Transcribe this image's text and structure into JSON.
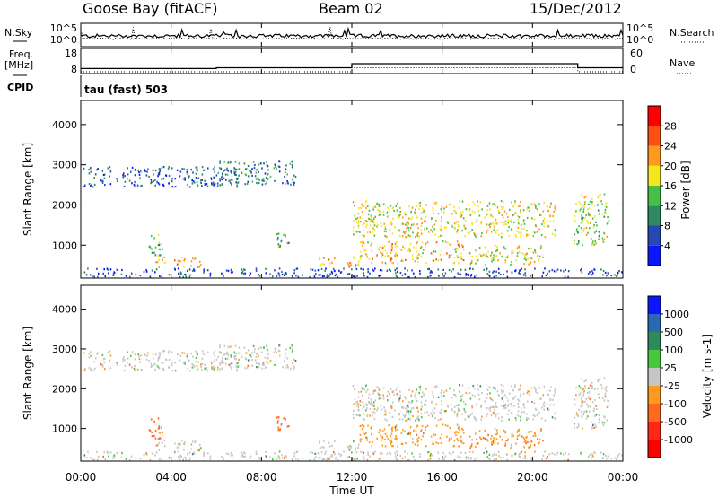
{
  "header": {
    "station": "Goose Bay (fitACF)",
    "beam": "Beam 02",
    "date": "15/Dec/2012"
  },
  "noise_panel": {
    "left_label": "N.Sky",
    "right_label": "N.Search",
    "left_ticks": [
      "10^5",
      "10^0"
    ],
    "right_ticks": [
      "10^5",
      "10^0"
    ]
  },
  "freq_panel": {
    "left_label_1": "Freq.",
    "left_label_2": "[MHz]",
    "left_ticks": [
      "18",
      "8"
    ],
    "right_label": "Nave",
    "right_ticks": [
      "60",
      "0"
    ],
    "cpid_label": "CPID",
    "cpid_value": "tau (fast) 503"
  },
  "time_axis": {
    "ticks": [
      "00:00",
      "04:00",
      "08:00",
      "12:00",
      "16:00",
      "20:00",
      "00:00"
    ],
    "tick_hours": [
      0,
      4,
      8,
      12,
      16,
      20,
      24
    ],
    "label": "Time UT"
  },
  "range_axis": {
    "label": "Slant Range [km]",
    "ticks": [
      "1000",
      "2000",
      "3000",
      "4000"
    ],
    "tick_values": [
      1000,
      2000,
      3000,
      4000
    ],
    "range": [
      180,
      4600
    ]
  },
  "power_bar": {
    "label": "Power [dB]",
    "ticks": [
      "4",
      "8",
      "12",
      "16",
      "20",
      "24",
      "28"
    ],
    "colors": [
      "#0a16ff",
      "#2448b4",
      "#2f8a64",
      "#46c046",
      "#f5e61e",
      "#ff9a1e",
      "#ff5014",
      "#ff0000"
    ]
  },
  "velocity_bar": {
    "label": "Velocity [m s-1]",
    "ticks": [
      "1000",
      "500",
      "100",
      "25",
      "-25",
      "-100",
      "-500",
      "-1000"
    ],
    "colors": [
      "#0a16ff",
      "#2a68b4",
      "#2f8a5a",
      "#46c83c",
      "#c6c6c6",
      "#ff9a1e",
      "#ff6a1e",
      "#ff2814",
      "#ff0000"
    ]
  },
  "chart_data": {
    "type": "heatmap",
    "x_unit": "hours UT",
    "y_unit": "km",
    "xlim": [
      0,
      24
    ],
    "ylim": [
      180,
      4600
    ],
    "frequency_steps_mhz": [
      [
        0,
        6,
        10
      ],
      [
        6,
        12,
        10.5
      ],
      [
        12,
        22,
        13
      ],
      [
        22,
        24,
        10.5
      ]
    ],
    "nave_steps": [
      [
        0,
        12,
        0
      ],
      [
        12,
        22,
        15
      ],
      [
        22,
        24,
        0
      ]
    ],
    "echo_regions": [
      {
        "t0": 0.1,
        "t1": 7.0,
        "r0": 2450,
        "r1": 2950,
        "power": 7,
        "velocity": 0
      },
      {
        "t0": 6.0,
        "t1": 9.5,
        "r0": 2500,
        "r1": 3100,
        "power": 8,
        "velocity": 0
      },
      {
        "t0": 3.3,
        "t1": 5.3,
        "r0": 450,
        "r1": 700,
        "power": 22,
        "velocity": 0
      },
      {
        "t0": 3.0,
        "t1": 3.6,
        "r0": 700,
        "r1": 1300,
        "power": 12,
        "velocity": -120
      },
      {
        "t0": 10.5,
        "t1": 12.3,
        "r0": 450,
        "r1": 700,
        "power": 21,
        "velocity": 0
      },
      {
        "t0": 8.6,
        "t1": 9.3,
        "r0": 900,
        "r1": 1300,
        "power": 12,
        "velocity": -300
      },
      {
        "t0": 12.0,
        "t1": 21.0,
        "r0": 1200,
        "r1": 2100,
        "power": 18,
        "velocity": 0
      },
      {
        "t0": 12.3,
        "t1": 17.0,
        "r0": 550,
        "r1": 1100,
        "power": 20,
        "velocity": -60
      },
      {
        "t0": 17.2,
        "t1": 20.5,
        "r0": 500,
        "r1": 1000,
        "power": 18,
        "velocity": -80
      },
      {
        "t0": 21.8,
        "t1": 23.4,
        "r0": 1000,
        "r1": 2300,
        "power": 16,
        "velocity": 0
      },
      {
        "t0": 0.0,
        "t1": 24.0,
        "r0": 200,
        "r1": 420,
        "power": 6,
        "velocity": 0
      }
    ]
  }
}
